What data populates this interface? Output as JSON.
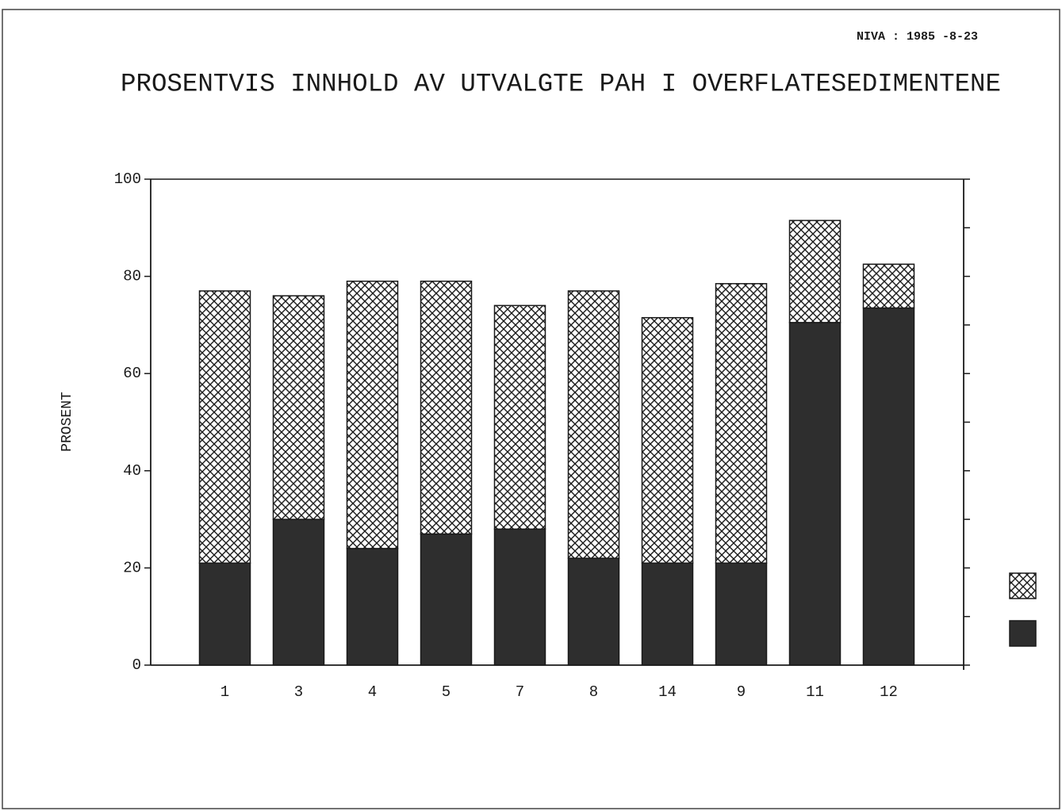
{
  "chart_data": {
    "type": "stacked_bar",
    "header": "NIVA :  1985 -8-23",
    "title": "PROSENTVIS INNHOLD AV UTVALGTE PAH I OVERFLATESEDIMENTENE",
    "y_label": "PROSENT",
    "categories": [
      "1",
      "3",
      "4",
      "5",
      "7",
      "8",
      "14",
      "9",
      "11",
      "12"
    ],
    "series": [
      {
        "color": "#2e2e2e",
        "pattern": "solid",
        "values": [
          21,
          30,
          24,
          27,
          28,
          22,
          21,
          21,
          70.5,
          73.5
        ]
      },
      {
        "color": "#1a1a1a",
        "pattern": "crosshatch",
        "values": [
          56,
          46,
          55,
          52,
          46,
          55,
          50.5,
          57.5,
          21,
          9
        ]
      }
    ],
    "ylim": [
      0,
      100
    ],
    "yticks": [
      0,
      20,
      40,
      60,
      80,
      100
    ],
    "y2lim": [
      0,
      100
    ],
    "y2ticks": [
      0,
      10,
      20,
      30,
      40,
      50,
      60,
      70,
      80,
      90,
      100
    ],
    "legend": "right"
  }
}
